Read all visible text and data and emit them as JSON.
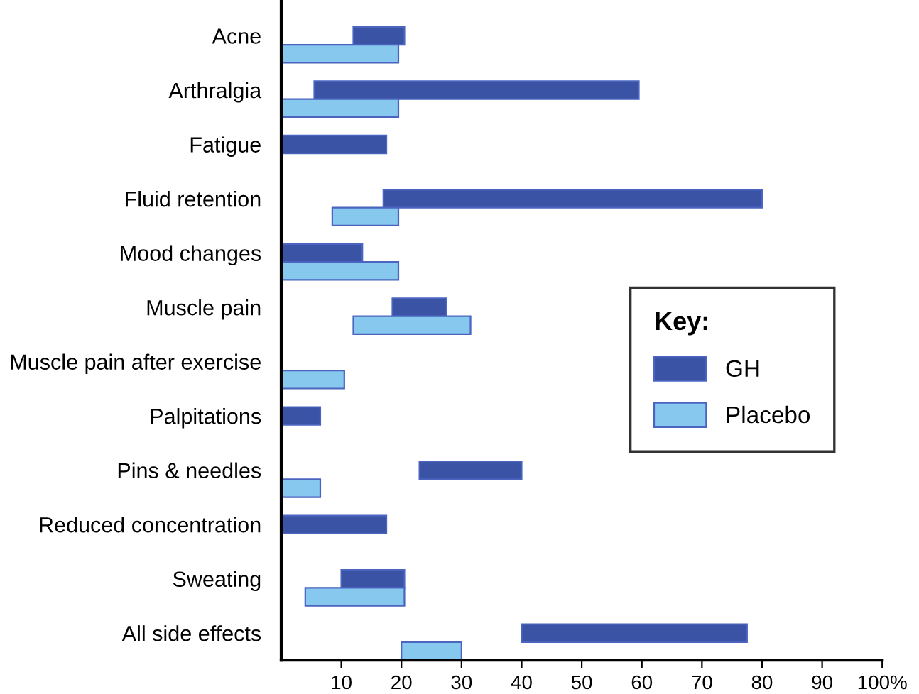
{
  "chart_data": {
    "type": "bar",
    "orientation": "horizontal",
    "categories": [
      "Acne",
      "Arthralgia",
      "Fatigue",
      "Fluid retention",
      "Mood changes",
      "Muscle pain",
      "Muscle pain after exercise",
      "Palpitations",
      "Pins & needles",
      "Reduced concentration",
      "Sweating",
      "All side effects"
    ],
    "series": [
      {
        "name": "GH",
        "color": "#3a53a4",
        "values": [
          8.5,
          54,
          17.5,
          63,
          13.5,
          9,
          null,
          6.5,
          17,
          17.5,
          10.5,
          37.5
        ],
        "base": [
          12,
          5.5,
          0,
          17,
          0,
          18.5,
          null,
          0,
          23,
          0,
          10,
          40
        ]
      },
      {
        "name": "Placebo",
        "color": "#87c8ef",
        "values": [
          19.5,
          19.5,
          null,
          11,
          19.5,
          19.5,
          10.5,
          null,
          6.5,
          null,
          16.5,
          10
        ],
        "base": [
          0,
          0,
          null,
          8.5,
          0,
          12,
          0,
          null,
          0,
          null,
          4,
          20
        ]
      }
    ],
    "xlim": [
      0,
      100
    ],
    "xticks": [
      10,
      20,
      30,
      40,
      50,
      60,
      70,
      80,
      90,
      {
        "value": 100,
        "label": "100%"
      }
    ],
    "legend": "right",
    "legend_title": "Key:",
    "grid": false
  }
}
